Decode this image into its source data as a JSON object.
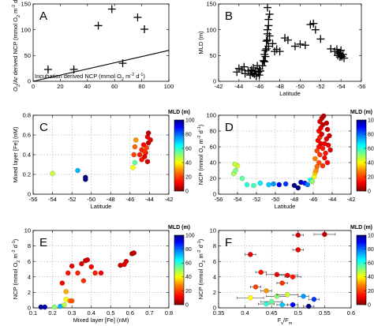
{
  "chart_data": [
    {
      "panel": "A",
      "type": "scatter",
      "marker": "plus",
      "xlabel": "Incubation derived NCP (mmol O2 m-2 d-1)",
      "ylabel": "O2/Ar derived NCP (mmol O2 m-2 d-1)",
      "xlim": [
        0,
        100
      ],
      "ylim": [
        0,
        150
      ],
      "xticks": [
        0,
        20,
        40,
        60,
        80,
        100
      ],
      "yticks": [
        0,
        50,
        100,
        150
      ],
      "grid": false,
      "points": [
        [
          11,
          23
        ],
        [
          30,
          23
        ],
        [
          48,
          108
        ],
        [
          58,
          140
        ],
        [
          66,
          35
        ],
        [
          77,
          124
        ],
        [
          82,
          101
        ]
      ],
      "line": [
        [
          0,
          0
        ],
        [
          100,
          60
        ]
      ]
    },
    {
      "panel": "B",
      "type": "scatter",
      "marker": "plus",
      "xlabel": "Latitude",
      "ylabel": "MLD (m)",
      "xlim": [
        -42,
        -56
      ],
      "ylim": [
        0,
        150
      ],
      "xticks": [
        -42,
        -44,
        -46,
        -48,
        -50,
        -52,
        -54,
        -56
      ],
      "yticks": [
        0,
        50,
        100,
        150
      ],
      "grid": false,
      "points": [
        [
          -43.8,
          18
        ],
        [
          -44.0,
          25
        ],
        [
          -44.3,
          22
        ],
        [
          -44.5,
          28
        ],
        [
          -44.6,
          15
        ],
        [
          -44.9,
          20
        ],
        [
          -45.1,
          12
        ],
        [
          -45.2,
          22
        ],
        [
          -45.3,
          16
        ],
        [
          -45.4,
          26
        ],
        [
          -45.5,
          14
        ],
        [
          -45.6,
          20
        ],
        [
          -45.7,
          10
        ],
        [
          -45.8,
          30
        ],
        [
          -45.9,
          18
        ],
        [
          -46.0,
          24
        ],
        [
          -46.0,
          12
        ],
        [
          -46.1,
          20
        ],
        [
          -46.3,
          30
        ],
        [
          -46.4,
          40
        ],
        [
          -46.5,
          38
        ],
        [
          -46.5,
          52
        ],
        [
          -46.6,
          48
        ],
        [
          -46.6,
          60
        ],
        [
          -46.7,
          63
        ],
        [
          -46.7,
          78
        ],
        [
          -46.8,
          80
        ],
        [
          -46.8,
          92
        ],
        [
          -46.8,
          100
        ],
        [
          -46.9,
          108
        ],
        [
          -46.9,
          120
        ],
        [
          -47.0,
          130
        ],
        [
          -46.8,
          143
        ],
        [
          -46.9,
          68
        ],
        [
          -47.0,
          88
        ],
        [
          -47.3,
          73
        ],
        [
          -47.5,
          58
        ],
        [
          -47.7,
          62
        ],
        [
          -48.0,
          58
        ],
        [
          -48.5,
          84
        ],
        [
          -48.8,
          80
        ],
        [
          -49.5,
          68
        ],
        [
          -50.0,
          72
        ],
        [
          -50.5,
          70
        ],
        [
          -51.0,
          110
        ],
        [
          -51.3,
          112
        ],
        [
          -51.5,
          100
        ],
        [
          -52.0,
          82
        ],
        [
          -53.0,
          63
        ],
        [
          -53.4,
          58
        ],
        [
          -53.6,
          62
        ],
        [
          -53.7,
          50
        ],
        [
          -53.8,
          55
        ],
        [
          -53.9,
          47
        ],
        [
          -53.9,
          53
        ],
        [
          -54.0,
          60
        ],
        [
          -54.0,
          50
        ],
        [
          -54.1,
          48
        ],
        [
          -54.2,
          52
        ],
        [
          -54.3,
          45
        ]
      ]
    },
    {
      "panel": "C",
      "type": "scatter",
      "marker": "circle",
      "color_by": "MLD (m)",
      "xlabel": "Latitude",
      "ylabel": "Mixed layer [Fe] (nM)",
      "xlim": [
        -56,
        -42
      ],
      "ylim": [
        0,
        0.8
      ],
      "xticks": [
        -56,
        -54,
        -52,
        -50,
        -48,
        -46,
        -44,
        -42
      ],
      "yticks": [
        0,
        0.2,
        0.4,
        0.6,
        0.8
      ],
      "grid": true,
      "points": [
        [
          -54.0,
          0.21,
          45
        ],
        [
          -51.4,
          0.24,
          72
        ],
        [
          -50.6,
          0.15,
          100
        ],
        [
          -50.6,
          0.17,
          103
        ],
        [
          -45.7,
          0.27,
          40
        ],
        [
          -45.5,
          0.32,
          55
        ],
        [
          -45.6,
          0.4,
          20
        ],
        [
          -45.5,
          0.48,
          25
        ],
        [
          -45.4,
          0.55,
          30
        ],
        [
          -44.8,
          0.35,
          14
        ],
        [
          -44.5,
          0.38,
          10
        ],
        [
          -44.2,
          0.33,
          8
        ],
        [
          -44.4,
          0.42,
          12
        ],
        [
          -44.8,
          0.45,
          16
        ],
        [
          -44.3,
          0.47,
          20
        ],
        [
          -44.6,
          0.5,
          13
        ],
        [
          -44.1,
          0.52,
          6
        ],
        [
          -43.9,
          0.55,
          9
        ],
        [
          -44.2,
          0.58,
          11
        ],
        [
          -44.1,
          0.62,
          5
        ],
        [
          -44.5,
          0.43,
          18
        ],
        [
          -45.0,
          0.4,
          15
        ]
      ]
    },
    {
      "panel": "D",
      "type": "scatter",
      "marker": "circle",
      "color_by": "MLD (m)",
      "xlabel": "Latitude",
      "ylabel": "NCP (mmol O2 m-2 d-1)",
      "xlim": [
        -56,
        -42
      ],
      "ylim": [
        0,
        100
      ],
      "xticks": [
        -56,
        -54,
        -52,
        -50,
        -48,
        -46,
        -44,
        -42
      ],
      "yticks": [
        0,
        20,
        40,
        60,
        80,
        100
      ],
      "grid": true,
      "points": [
        [
          -54.4,
          26,
          48
        ],
        [
          -54.2,
          30,
          52
        ],
        [
          -54.0,
          36,
          44
        ],
        [
          -54.3,
          38,
          46
        ],
        [
          -53.5,
          20,
          55
        ],
        [
          -53.0,
          12,
          60
        ],
        [
          -52.3,
          11,
          58
        ],
        [
          -51.6,
          14,
          66
        ],
        [
          -50.7,
          12,
          70
        ],
        [
          -50.2,
          13,
          76
        ],
        [
          -49.6,
          12,
          90
        ],
        [
          -48.9,
          13,
          85
        ],
        [
          -48.0,
          11,
          100
        ],
        [
          -47.6,
          8,
          104
        ],
        [
          -47.3,
          15,
          95
        ],
        [
          -46.9,
          14,
          88
        ],
        [
          -46.6,
          12,
          78
        ],
        [
          -46.3,
          18,
          64
        ],
        [
          -46.1,
          16,
          50
        ],
        [
          -45.9,
          22,
          40
        ],
        [
          -45.8,
          27,
          35
        ],
        [
          -45.7,
          30,
          30
        ],
        [
          -45.6,
          35,
          25
        ],
        [
          -45.4,
          40,
          22
        ],
        [
          -45.8,
          45,
          28
        ],
        [
          -45.3,
          50,
          18
        ],
        [
          -45.6,
          55,
          20
        ],
        [
          -45.4,
          60,
          14
        ],
        [
          -45.2,
          64,
          10
        ],
        [
          -45.5,
          68,
          12
        ],
        [
          -45.3,
          72,
          16
        ],
        [
          -45.1,
          76,
          8
        ],
        [
          -45.4,
          80,
          13
        ],
        [
          -45.2,
          84,
          11
        ],
        [
          -45.0,
          88,
          6
        ],
        [
          -45.3,
          92,
          9
        ],
        [
          -45.1,
          96,
          7
        ],
        [
          -45.0,
          58,
          15
        ],
        [
          -44.8,
          46,
          12
        ],
        [
          -44.6,
          70,
          9
        ],
        [
          -44.5,
          82,
          8
        ],
        [
          -44.8,
          64,
          11
        ],
        [
          -44.7,
          52,
          14
        ],
        [
          -44.4,
          62,
          10
        ],
        [
          -44.3,
          74,
          7
        ],
        [
          -44.6,
          90,
          6
        ],
        [
          -44.2,
          56,
          9
        ],
        [
          -44.5,
          40,
          13
        ],
        [
          -45.0,
          36,
          18
        ],
        [
          -44.9,
          99,
          5
        ]
      ]
    },
    {
      "panel": "E",
      "type": "scatter",
      "marker": "circle",
      "color_by": "MLD (m)",
      "xlabel": "Mixed layer [Fe] (nM)",
      "ylabel": "NCP (mmol O2 m-2 d-1)",
      "xlim": [
        0.1,
        0.8
      ],
      "ylim": [
        0,
        10
      ],
      "xticks": [
        0.1,
        0.2,
        0.3,
        0.4,
        0.5,
        0.6,
        0.7,
        0.8
      ],
      "yticks": [
        0,
        2,
        4,
        6,
        8,
        10
      ],
      "grid": true,
      "points": [
        [
          0.14,
          0.1,
          100
        ],
        [
          0.16,
          0.1,
          96
        ],
        [
          0.21,
          0.1,
          50
        ],
        [
          0.24,
          0.2,
          72
        ],
        [
          0.26,
          0.4,
          46
        ],
        [
          0.27,
          1.1,
          40
        ],
        [
          0.27,
          2.1,
          32
        ],
        [
          0.29,
          0.9,
          28
        ],
        [
          0.3,
          0.9,
          22
        ],
        [
          0.25,
          3.2,
          12
        ],
        [
          0.28,
          4.5,
          14
        ],
        [
          0.3,
          5.4,
          10
        ],
        [
          0.33,
          4.5,
          16
        ],
        [
          0.35,
          5.7,
          9
        ],
        [
          0.37,
          6.1,
          6
        ],
        [
          0.38,
          6.2,
          8
        ],
        [
          0.4,
          5.3,
          12
        ],
        [
          0.42,
          4.5,
          15
        ],
        [
          0.36,
          3.5,
          18
        ],
        [
          0.45,
          4.5,
          11
        ],
        [
          0.55,
          5.5,
          7
        ],
        [
          0.57,
          5.6,
          9
        ],
        [
          0.61,
          7.0,
          5
        ],
        [
          0.62,
          7.1,
          6
        ],
        [
          0.58,
          6.0,
          8
        ]
      ]
    },
    {
      "panel": "F",
      "type": "scatter",
      "marker": "circle-with-xerror",
      "color_by": "MLD (m)",
      "xlabel": "Fv/Fm",
      "ylabel": "NCP (mmol O2 m-2 d-1)",
      "xlim": [
        0.35,
        0.6
      ],
      "ylim": [
        0,
        10
      ],
      "xticks": [
        0.35,
        0.4,
        0.45,
        0.5,
        0.55,
        0.6
      ],
      "yticks": [
        0,
        2,
        4,
        6,
        8,
        10
      ],
      "grid": true,
      "points": [
        [
          0.55,
          9.5,
          6,
          0.02
        ],
        [
          0.5,
          9.4,
          8,
          0.01
        ],
        [
          0.5,
          7.5,
          10,
          0.01
        ],
        [
          0.41,
          6.9,
          9,
          0.01
        ],
        [
          0.43,
          4.6,
          14,
          0.01
        ],
        [
          0.46,
          4.3,
          11,
          0.02
        ],
        [
          0.48,
          4.2,
          12,
          0.02
        ],
        [
          0.49,
          4.0,
          15,
          0.015
        ],
        [
          0.42,
          2.7,
          20,
          0.01
        ],
        [
          0.47,
          3.2,
          18,
          0.01
        ],
        [
          0.44,
          2.2,
          30,
          0.01
        ],
        [
          0.41,
          1.3,
          40,
          0.025
        ],
        [
          0.46,
          1.5,
          50,
          0.02
        ],
        [
          0.44,
          0.5,
          60,
          0.015
        ],
        [
          0.47,
          0.4,
          70,
          0.01
        ],
        [
          0.49,
          0.4,
          90,
          0.01
        ],
        [
          0.52,
          0.2,
          100,
          0.01
        ],
        [
          0.51,
          1.5,
          75,
          0.01
        ],
        [
          0.53,
          1.1,
          85,
          0.01
        ],
        [
          0.45,
          0.8,
          55,
          0.02
        ],
        [
          0.48,
          1.7,
          45,
          0.02
        ]
      ]
    }
  ],
  "colorbar": {
    "title": "MLD (m)",
    "min": 0,
    "max": 100,
    "ticks": [
      "0",
      "20",
      "40",
      "60",
      "80",
      "100"
    ],
    "colors": [
      "#800000",
      "#ff0000",
      "#ff8000",
      "#ffff00",
      "#80ff80",
      "#00ffff",
      "#0080ff",
      "#0000ff",
      "#000080"
    ]
  },
  "labels": {
    "panel_A": "A",
    "panel_B": "B",
    "panel_C": "C",
    "panel_D": "D",
    "panel_E": "E",
    "panel_F": "F",
    "cb_title": "MLD (m)"
  }
}
